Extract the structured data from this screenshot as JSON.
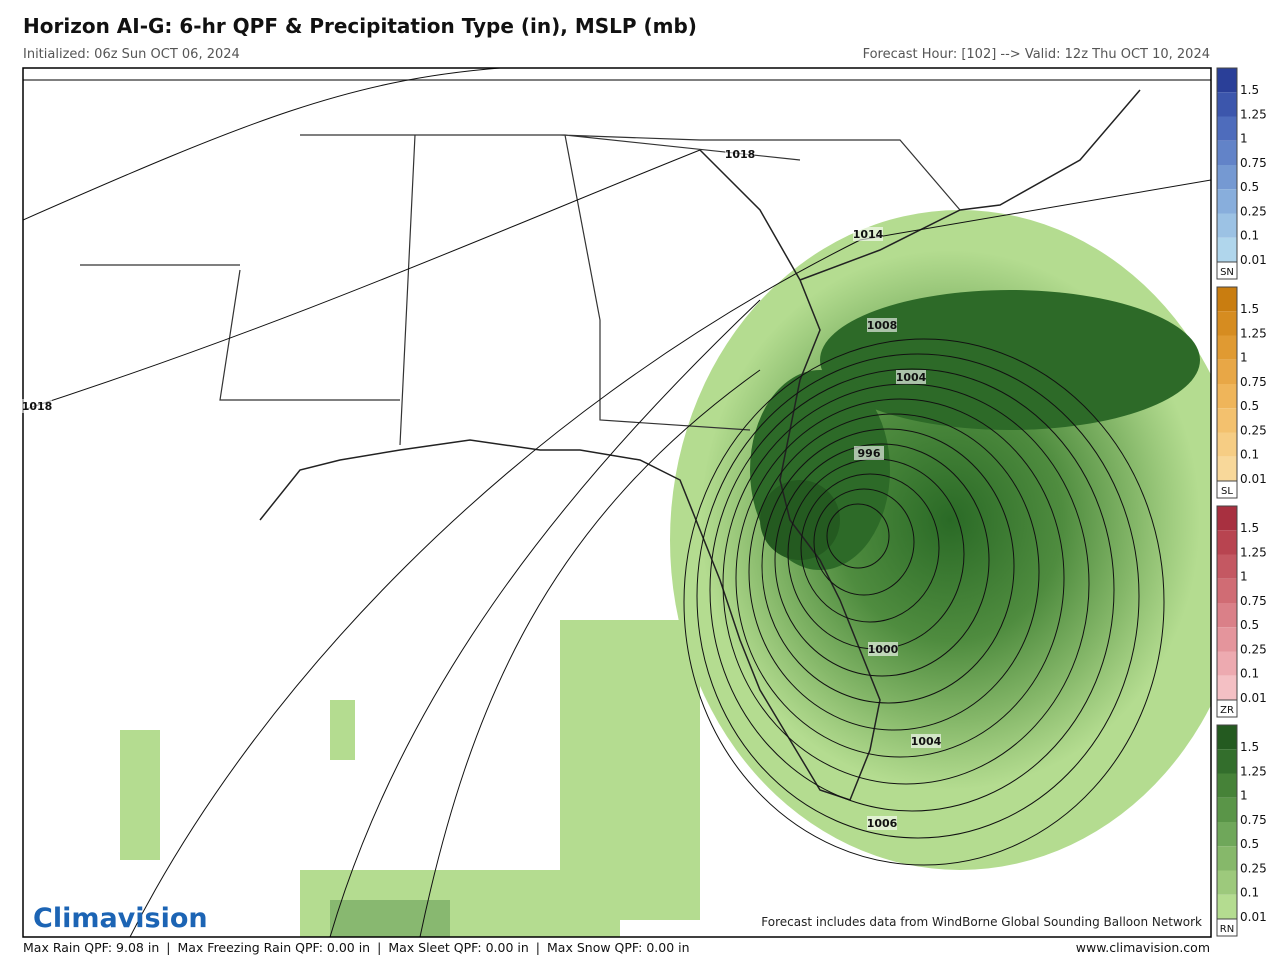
{
  "header": {
    "title": "Horizon AI-G: 6-hr QPF & Precipitation Type (in), MSLP (mb)",
    "initialized": "Initialized: 06z Sun OCT 06, 2024",
    "valid": "Forecast Hour: [102] --> Valid: 12z Thu OCT 10, 2024"
  },
  "map": {
    "isobar_labels": [
      "1018",
      "1018",
      "1014",
      "1008",
      "1004",
      "996",
      "1000",
      "1004",
      "1006"
    ],
    "attribution": "Forecast includes data from WindBorne Global Sounding Balloon Network"
  },
  "legend": [
    {
      "code": "SN",
      "labels": [
        "1.5",
        "1.25",
        "1",
        "0.75",
        "0.5",
        "0.25",
        "0.1",
        "0.01"
      ],
      "colors": [
        "#2a3f98",
        "#3c56ac",
        "#4e6cbc",
        "#6283c8",
        "#7599d2",
        "#88aedc",
        "#9cc2e4",
        "#b0d6ec"
      ]
    },
    {
      "code": "SL",
      "labels": [
        "1.5",
        "1.25",
        "1",
        "0.75",
        "0.5",
        "0.25",
        "0.1",
        "0.01"
      ],
      "colors": [
        "#c97d10",
        "#d68c20",
        "#e09a32",
        "#e8a746",
        "#efb55a",
        "#f3c16e",
        "#f6cd84",
        "#f8d89a"
      ]
    },
    {
      "code": "ZR",
      "labels": [
        "1.5",
        "1.25",
        "1",
        "0.75",
        "0.5",
        "0.25",
        "0.1",
        "0.01"
      ],
      "colors": [
        "#a83040",
        "#b84450",
        "#c45862",
        "#d06c74",
        "#da8088",
        "#e4959c",
        "#edaab0",
        "#f4c0c4"
      ]
    },
    {
      "code": "RN",
      "labels": [
        "1.5",
        "1.25",
        "1",
        "0.75",
        "0.5",
        "0.25",
        "0.1",
        "0.01"
      ],
      "colors": [
        "#245a20",
        "#336e2c",
        "#468238",
        "#5a9548",
        "#6fa75a",
        "#86b86a",
        "#9dc97c",
        "#b4dc90"
      ]
    }
  ],
  "footer": {
    "items": [
      "Max Rain QPF: 9.08 in",
      "Max Freezing Rain QPF: 0.00 in",
      "Max Sleet QPF: 0.00 in",
      "Max Snow QPF: 0.00 in"
    ],
    "website": "www.climavision.com"
  },
  "logo": "Climavision"
}
